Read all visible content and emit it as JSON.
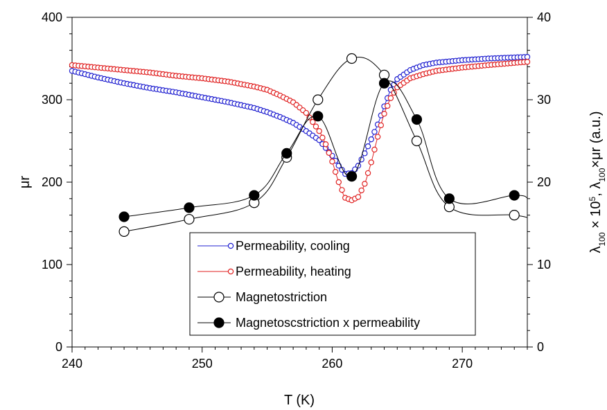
{
  "chart_data": {
    "type": "scatter",
    "xlabel": "T (K)",
    "ylabel_left": "μr",
    "ylabel_right": "λ100 × 10^5, λ100×μr (a.u.)",
    "ylabel_right_parts": [
      "λ",
      "100",
      " × 10",
      "5",
      ", λ",
      "100",
      "×μr (a.u.)"
    ],
    "xlim": [
      240,
      275
    ],
    "ylim_left": [
      0,
      400
    ],
    "ylim_right": [
      0,
      40
    ],
    "x_ticks": [
      240,
      250,
      260,
      270
    ],
    "x_tick_labels": [
      "240",
      "250",
      "260",
      "270"
    ],
    "y_left_ticks": [
      0,
      100,
      200,
      300,
      400
    ],
    "y_left_tick_labels": [
      "0",
      "100",
      "200",
      "300",
      "400"
    ],
    "y_right_ticks": [
      0,
      10,
      20,
      30,
      40
    ],
    "y_right_tick_labels": [
      "0",
      "10",
      "20",
      "30",
      "40"
    ],
    "legend_position": "bottom-center",
    "series": [
      {
        "name": "Permeability, cooling",
        "axis": "left",
        "style": "open-small",
        "color": "#1f1fd0",
        "x": [
          240,
          242,
          244,
          246,
          248,
          250,
          252,
          254,
          255,
          256,
          257,
          258,
          259,
          260,
          260.5,
          261,
          261.5,
          262,
          262.5,
          263,
          263.5,
          264,
          264.5,
          265,
          266,
          267,
          268,
          270,
          272,
          275
        ],
        "values": [
          335,
          327,
          320,
          314,
          309,
          303,
          297,
          290,
          285,
          279,
          272,
          262,
          251,
          232,
          220,
          210,
          211,
          220,
          235,
          252,
          270,
          292,
          312,
          325,
          336,
          342,
          345,
          348,
          350,
          352
        ]
      },
      {
        "name": "Permeability, heating",
        "axis": "left",
        "style": "open-small",
        "color": "#e02020",
        "x": [
          240,
          242,
          244,
          246,
          248,
          250,
          252,
          254,
          255,
          256,
          257,
          258,
          259,
          259.5,
          260,
          260.5,
          261,
          261.5,
          262,
          262.5,
          263,
          263.5,
          264,
          264.5,
          265,
          266,
          267,
          268,
          270,
          272,
          275
        ],
        "values": [
          342,
          339,
          336,
          333,
          329,
          326,
          322,
          316,
          312,
          305,
          297,
          284,
          262,
          246,
          225,
          200,
          181,
          178,
          182,
          198,
          224,
          255,
          283,
          302,
          315,
          326,
          331,
          335,
          339,
          342,
          346
        ]
      },
      {
        "name": "Magnetostriction",
        "axis": "right",
        "style": "open-large",
        "color": "#000000",
        "x": [
          244,
          249,
          254,
          256.5,
          258.9,
          261.5,
          264,
          266.5,
          269,
          274
        ],
        "values": [
          14.0,
          15.5,
          17.5,
          23.0,
          30.0,
          35.0,
          33.0,
          25.0,
          17.0,
          16.0
        ]
      },
      {
        "name": "Magnetoscstriction x permeability",
        "axis": "right",
        "style": "filled-large",
        "color": "#000000",
        "x": [
          244,
          249,
          254,
          256.5,
          258.9,
          261.5,
          264,
          266.5,
          269,
          274
        ],
        "values": [
          15.8,
          16.9,
          18.4,
          23.5,
          28.0,
          20.7,
          32.0,
          27.6,
          18.0,
          18.4
        ]
      }
    ]
  }
}
